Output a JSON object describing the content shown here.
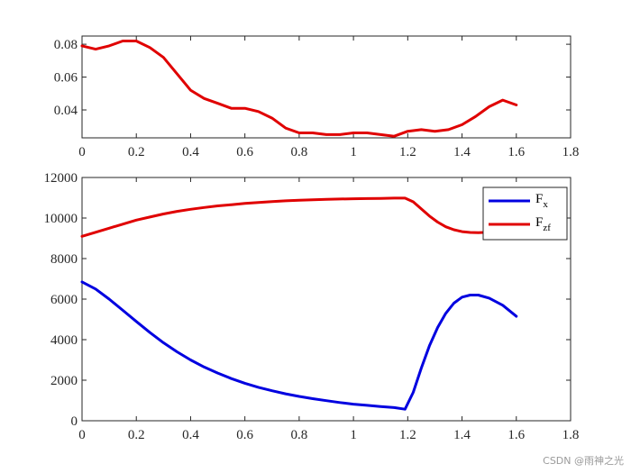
{
  "watermark": "CSDN @雨神之光",
  "chart_data": [
    {
      "id": "top",
      "type": "line",
      "title": "",
      "xlabel": "",
      "ylabel": "",
      "xlim": [
        0,
        1.8
      ],
      "ylim": [
        0.023,
        0.085
      ],
      "xticks": [
        "0",
        "0.2",
        "0.4",
        "0.6",
        "0.8",
        "1",
        "1.2",
        "1.4",
        "1.6",
        "1.8"
      ],
      "yticks": [
        "0.04",
        "0.06",
        "0.08"
      ],
      "grid": false,
      "series": [
        {
          "color": "#e00000",
          "x": [
            0,
            0.05,
            0.1,
            0.15,
            0.2,
            0.25,
            0.3,
            0.35,
            0.4,
            0.45,
            0.5,
            0.55,
            0.6,
            0.65,
            0.7,
            0.75,
            0.8,
            0.85,
            0.9,
            0.95,
            1.0,
            1.05,
            1.1,
            1.15,
            1.2,
            1.25,
            1.3,
            1.35,
            1.4,
            1.45,
            1.5,
            1.55,
            1.6
          ],
          "y": [
            0.079,
            0.077,
            0.079,
            0.082,
            0.082,
            0.078,
            0.072,
            0.062,
            0.052,
            0.047,
            0.044,
            0.041,
            0.041,
            0.039,
            0.035,
            0.029,
            0.026,
            0.026,
            0.025,
            0.025,
            0.026,
            0.026,
            0.025,
            0.024,
            0.027,
            0.028,
            0.027,
            0.028,
            0.031,
            0.036,
            0.042,
            0.046,
            0.043
          ]
        }
      ]
    },
    {
      "id": "bottom",
      "type": "line",
      "title": "",
      "xlabel": "",
      "ylabel": "",
      "xlim": [
        0,
        1.8
      ],
      "ylim": [
        0,
        12000
      ],
      "xticks": [
        "0",
        "0.2",
        "0.4",
        "0.6",
        "0.8",
        "1",
        "1.2",
        "1.4",
        "1.6",
        "1.8"
      ],
      "yticks": [
        "0",
        "2000",
        "4000",
        "6000",
        "8000",
        "10000",
        "12000"
      ],
      "grid": false,
      "legend": {
        "placement": "top-right"
      },
      "series": [
        {
          "name": "F",
          "name_sub": "x",
          "color": "#0000e0",
          "x": [
            0,
            0.05,
            0.1,
            0.15,
            0.2,
            0.25,
            0.3,
            0.35,
            0.4,
            0.45,
            0.5,
            0.55,
            0.6,
            0.65,
            0.7,
            0.75,
            0.8,
            0.85,
            0.9,
            0.95,
            1.0,
            1.05,
            1.1,
            1.15,
            1.19,
            1.22,
            1.25,
            1.28,
            1.31,
            1.34,
            1.37,
            1.4,
            1.43,
            1.46,
            1.5,
            1.55,
            1.6
          ],
          "y": [
            6850,
            6500,
            6000,
            5450,
            4900,
            4350,
            3850,
            3400,
            3000,
            2650,
            2350,
            2080,
            1850,
            1650,
            1480,
            1330,
            1200,
            1090,
            990,
            900,
            820,
            760,
            700,
            650,
            570,
            1400,
            2600,
            3700,
            4600,
            5300,
            5800,
            6100,
            6200,
            6200,
            6050,
            5700,
            5150
          ]
        },
        {
          "name": "F",
          "name_sub": "zf",
          "color": "#e00000",
          "x": [
            0,
            0.05,
            0.1,
            0.15,
            0.2,
            0.25,
            0.3,
            0.35,
            0.4,
            0.45,
            0.5,
            0.55,
            0.6,
            0.65,
            0.7,
            0.75,
            0.8,
            0.85,
            0.9,
            0.95,
            1.0,
            1.05,
            1.1,
            1.15,
            1.19,
            1.22,
            1.25,
            1.28,
            1.31,
            1.34,
            1.37,
            1.4,
            1.43,
            1.46,
            1.5
          ],
          "y": [
            9100,
            9300,
            9500,
            9700,
            9900,
            10050,
            10200,
            10330,
            10430,
            10520,
            10600,
            10660,
            10720,
            10770,
            10810,
            10850,
            10880,
            10900,
            10920,
            10940,
            10950,
            10960,
            10970,
            10980,
            10980,
            10800,
            10450,
            10100,
            9800,
            9570,
            9420,
            9330,
            9290,
            9280,
            9300
          ]
        }
      ]
    }
  ]
}
